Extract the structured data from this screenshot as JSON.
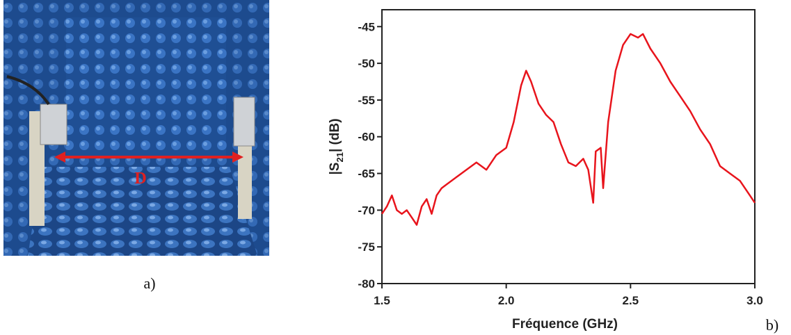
{
  "panels": {
    "photo_marker": "D",
    "a_label": "a)",
    "b_label": "b)"
  },
  "chart_data": {
    "type": "line",
    "x_label": "Fréquence  (GHz)",
    "y_label_parts": [
      "|S",
      "21",
      "|  (dB)"
    ],
    "color": "#e8141c",
    "x": [
      1.5,
      1.52,
      1.54,
      1.56,
      1.58,
      1.6,
      1.62,
      1.64,
      1.66,
      1.68,
      1.7,
      1.72,
      1.74,
      1.76,
      1.8,
      1.84,
      1.88,
      1.92,
      1.96,
      2.0,
      2.03,
      2.06,
      2.08,
      2.1,
      2.13,
      2.16,
      2.19,
      2.22,
      2.25,
      2.28,
      2.31,
      2.33,
      2.35,
      2.36,
      2.38,
      2.39,
      2.41,
      2.44,
      2.47,
      2.5,
      2.53,
      2.55,
      2.58,
      2.62,
      2.66,
      2.7,
      2.74,
      2.78,
      2.82,
      2.86,
      2.9,
      2.94,
      2.98,
      3.0
    ],
    "values": [
      -70.5,
      -69.5,
      -68,
      -70,
      -70.5,
      -70,
      -71,
      -72,
      -69.5,
      -68.5,
      -70.5,
      -68,
      -67,
      -66.5,
      -65.5,
      -64.5,
      -63.5,
      -64.5,
      -62.5,
      -61.5,
      -58,
      -53,
      -51,
      -52.5,
      -55.5,
      -57,
      -58,
      -61,
      -63.5,
      -64,
      -63,
      -64.5,
      -69,
      -62,
      -61.5,
      -67,
      -58,
      -51,
      -47.5,
      -46,
      -46.5,
      -46,
      -48,
      -50,
      -52.5,
      -54.5,
      -56.5,
      -59,
      -61,
      -64,
      -65,
      -66,
      -68,
      -69
    ],
    "xlim": [
      1.5,
      3.0
    ],
    "ylim": [
      -80,
      -42.7
    ],
    "xticks": [
      1.5,
      {
        "value": 2,
        "label": "2.0"
      },
      2.5,
      {
        "value": 3,
        "label": "3.0"
      }
    ],
    "yticks": [
      -80,
      -75,
      -70,
      -65,
      -60,
      -55,
      -50,
      -45
    ]
  }
}
